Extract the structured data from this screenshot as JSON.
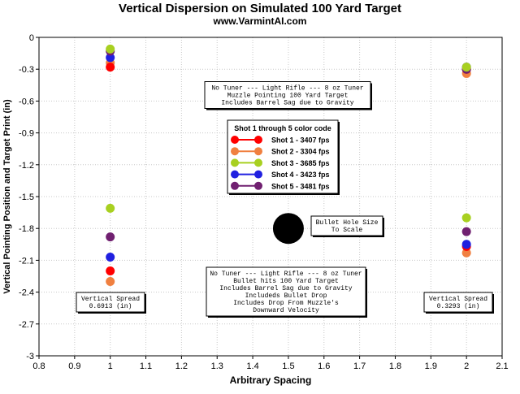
{
  "chart_data": {
    "type": "scatter",
    "title": "Vertical Dispersion on Simulated 100 Yard Target",
    "subtitle": "www.VarmintAI.com",
    "xlabel": "Arbitrary Spacing",
    "ylabel": "Vertical Pointing Position and Target Print (in)",
    "xlim": [
      0.8,
      2.1
    ],
    "ylim": [
      -3,
      0
    ],
    "xticks": [
      "0.8",
      "0.9",
      "1",
      "1.1",
      "1.2",
      "1.3",
      "1.4",
      "1.5",
      "1.6",
      "1.7",
      "1.8",
      "1.9",
      "2",
      "2.1"
    ],
    "yticks": [
      "0",
      "-0.3",
      "-0.6",
      "-0.9",
      "-1.2",
      "-1.5",
      "-1.8",
      "-2.1",
      "-2.4",
      "-2.7",
      "-3"
    ],
    "grid": true,
    "legend_placement": "center",
    "legend_title": "Shot 1 through 5 color code",
    "series": [
      {
        "name": "Shot 1 - 3407 fps",
        "color": "#ff0000",
        "points": [
          [
            1,
            -0.28
          ],
          [
            1,
            -2.2
          ],
          [
            2,
            -0.3
          ],
          [
            2,
            -1.97
          ]
        ]
      },
      {
        "name": "Shot 2 - 3304 fps",
        "color": "#f08040",
        "points": [
          [
            1,
            -0.24
          ],
          [
            1,
            -2.3
          ],
          [
            2,
            -0.34
          ],
          [
            2,
            -2.03
          ]
        ]
      },
      {
        "name": "Shot 3 - 3685 fps",
        "color": "#a8d020",
        "points": [
          [
            1,
            -0.11
          ],
          [
            1,
            -1.61
          ],
          [
            2,
            -0.28
          ],
          [
            2,
            -1.7
          ]
        ]
      },
      {
        "name": "Shot 4 - 3423 fps",
        "color": "#2020e0",
        "points": [
          [
            1,
            -0.19
          ],
          [
            1,
            -2.07
          ],
          [
            2,
            -0.28
          ],
          [
            2,
            -1.95
          ]
        ]
      },
      {
        "name": "Shot 5 - 3481 fps",
        "color": "#702070",
        "points": [
          [
            1,
            -0.13
          ],
          [
            1,
            -1.88
          ],
          [
            2,
            -0.3
          ],
          [
            2,
            -1.83
          ]
        ]
      }
    ],
    "bullet_hole": {
      "x": 1.5,
      "y": -1.8,
      "color": "#000000"
    },
    "annotations": {
      "top_box": [
        "No Tuner --- Light Rifle --- 8 oz Tuner",
        "Muzzle Pointing 100 Yard Target",
        "Includes Barrel Sag due to Gravity"
      ],
      "bottom_box": [
        "No Tuner --- Light Rifle --- 8 oz Tuner",
        "Bullet hits 100 Yard Target",
        "Includes Barrel Sag due to Gravity",
        "Includeds Bullet Drop",
        "Includes Drop From Muzzle's",
        "Downward Velocity"
      ],
      "bullet_hole_label": [
        "Bullet Hole Size",
        "To Scale"
      ],
      "spread_left": [
        "Vertical Spread",
        "0.6913 (in)"
      ],
      "spread_right": [
        "Vertical Spread",
        "0.3293 (in)"
      ]
    }
  }
}
